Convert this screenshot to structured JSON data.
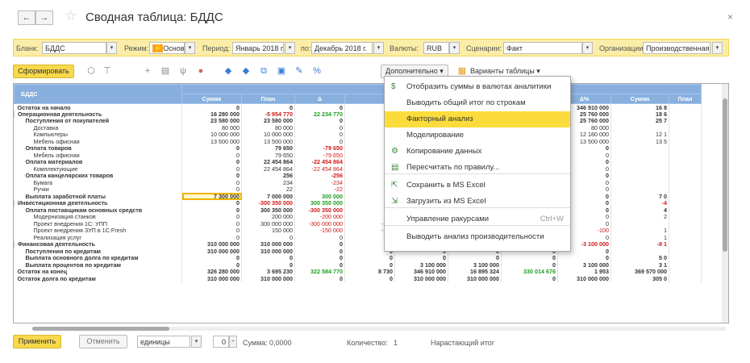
{
  "window": {
    "title": "Сводная таблица: БДДС",
    "back": "←",
    "forward": "→",
    "close": "×",
    "star": "☆"
  },
  "filters": {
    "blank_label": "Бланк:",
    "blank_value": "БДДС",
    "mode_label": "Режим:",
    "mode_value": "Основн",
    "period_label": "Период:",
    "period_from": "Январь 2018 г.",
    "to_label": "по:",
    "period_to": "Декабрь 2018 г.",
    "currency_label": "Валюты:",
    "currency_value": "RUB",
    "scenario_label": "Сценарии:",
    "scenario_value": "Факт",
    "org_label": "Организации:",
    "org_value": "Производственная ко"
  },
  "toolbar": {
    "form_button": "Сформировать",
    "more_button": "Дополнительно ▾",
    "variants_button": "Варианты таблицы ▾"
  },
  "menu": {
    "items": [
      "Отобразить суммы в валютах аналитики",
      "Выводить общий итог по строкам",
      "Факторный анализ",
      "Моделирование",
      "Копирование данных",
      "Пересчитать по правилу...",
      "Сохранить в MS Excel",
      "Загрузить из MS Excel",
      "Управление ракурсами",
      "Выводить анализ производительности"
    ],
    "shortcut": "Ctrl+W",
    "icons": [
      "currency-icon",
      "",
      "",
      "",
      "copy-data-icon",
      "recalc-icon",
      "excel-save-icon",
      "excel-load-icon",
      "",
      ""
    ]
  },
  "grid": {
    "header_row_title": "БДДС",
    "month_header": "Январь 2018 г.",
    "columns": [
      "Сумма",
      "План",
      "Δ",
      "",
      "",
      "",
      "",
      "Δ%",
      "Сумма",
      "План"
    ],
    "rows": [
      [
        "Остаток на начало",
        "0",
        "0",
        "0",
        "",
        "",
        "",
        "8 730",
        "346 910 000",
        "16 8"
      ],
      [
        "Операционная деятельность",
        "16 280 000",
        "-5 954 770",
        "22 234 770",
        "",
        "",
        "",
        "43",
        "25 760 000",
        "18 6"
      ],
      [
        "Поступления от покупателей",
        "23 580 000",
        "23 580 000",
        "0",
        "",
        "",
        "",
        "0",
        "25 760 000",
        "25 7"
      ],
      [
        "Доставка",
        "80 000",
        "80 000",
        "0",
        "",
        "",
        "",
        "0",
        "80 000",
        ""
      ],
      [
        "Компьютеры",
        "10 000 000",
        "10 000 000",
        "0",
        "",
        "",
        "",
        "0",
        "12 180 000",
        "12 1"
      ],
      [
        "Мебель офисная",
        "13 500 000",
        "13 500 000",
        "0",
        "",
        "",
        "",
        "0",
        "13 500 000",
        "13 5"
      ],
      [
        "Оплата товаров",
        "0",
        "79 650",
        "-79 650",
        "",
        "",
        "",
        "-100",
        "0",
        ""
      ],
      [
        "Мебель офисная",
        "0",
        "79 650",
        "-79 650",
        "",
        "",
        "",
        "-100",
        "0",
        ""
      ],
      [
        "Оплата материалов",
        "0",
        "22 454 864",
        "-22 454 864",
        "",
        "",
        "",
        "0",
        "0",
        ""
      ],
      [
        "Комплектующие",
        "0",
        "22 454 864",
        "-22 454 864",
        "",
        "",
        "",
        "0",
        "0",
        ""
      ],
      [
        "Оплата канцелярских товаров",
        "0",
        "256",
        "-256",
        "",
        "",
        "",
        "-200",
        "0",
        ""
      ],
      [
        "Бумага",
        "0",
        "234",
        "-234",
        "",
        "",
        "",
        "-100",
        "0",
        ""
      ],
      [
        "Ручки",
        "0",
        "22",
        "-22",
        "",
        "",
        "",
        "-100",
        "0",
        ""
      ],
      [
        "Выплата заработной платы",
        "7 300 000",
        "7 000 000",
        "300 000",
        "",
        "",
        "",
        "-100",
        "0",
        "7 0"
      ],
      [
        "Инвестиционная деятельность",
        "0",
        "-300 350 000",
        "300 350 000",
        "",
        "",
        "",
        "-100",
        "0",
        "-4"
      ],
      [
        "Оплата поставщикам основных средств",
        "0",
        "300 350 000",
        "-300 350 000",
        "",
        "",
        "",
        "-200",
        "0",
        "4"
      ],
      [
        "Модернизация станков",
        "0",
        "200 000",
        "-200 000",
        "",
        "",
        "",
        "-100",
        "0",
        "2"
      ],
      [
        "Проект внедрения 1С: УПП",
        "0",
        "300 000 000",
        "-300 000 000",
        "-100",
        "0",
        "0",
        "0",
        "0",
        ""
      ],
      [
        "Проект внедрения ЗУП в 1С:Fresh",
        "0",
        "150 000",
        "-150 000",
        "-100",
        "0",
        "150 000",
        "-150 000",
        "-100",
        "1"
      ],
      [
        "Реализация услуг",
        "0",
        "0",
        "0",
        "0",
        "0",
        "0",
        "0",
        "0",
        "1"
      ],
      [
        "Финансовая деятельность",
        "310 000 000",
        "310 000 000",
        "0",
        "0",
        "-3 100 000",
        "-3 100 000",
        "0",
        "-3 100 000",
        "-8 1"
      ],
      [
        "Поступления по кредитам",
        "310 000 000",
        "310 000 000",
        "0",
        "0",
        "0",
        "0",
        "0",
        "0",
        ""
      ],
      [
        "Выплата основного долга по кредитам",
        "0",
        "0",
        "0",
        "0",
        "0",
        "0",
        "0",
        "0",
        "5 0"
      ],
      [
        "Выплата процентов по кредитам",
        "0",
        "0",
        "0",
        "0",
        "3 100 000",
        "3 100 000",
        "0",
        "3 100 000",
        "3 1"
      ],
      [
        "Остаток на конец",
        "326 280 000",
        "3 695 230",
        "322 584 770",
        "8 730",
        "346 910 000",
        "16 895 324",
        "330 014 676",
        "1 953",
        "369 570 000"
      ],
      [
        "Остаток долга по кредитам",
        "310 000 000",
        "310 000 000",
        "0",
        "0",
        "310 000 000",
        "310 000 000",
        "0",
        "310 000 000",
        "305 0"
      ]
    ]
  },
  "bottom": {
    "apply_button": "Применить",
    "cancel_button": "Отменить",
    "units_value": "единицы",
    "stepper_value": "0",
    "sum_label": "Сумма:",
    "sum_value": "0,0000",
    "count_label": "Количество:",
    "count_value": "1",
    "cumulative_label": "Нарастающий итог"
  }
}
